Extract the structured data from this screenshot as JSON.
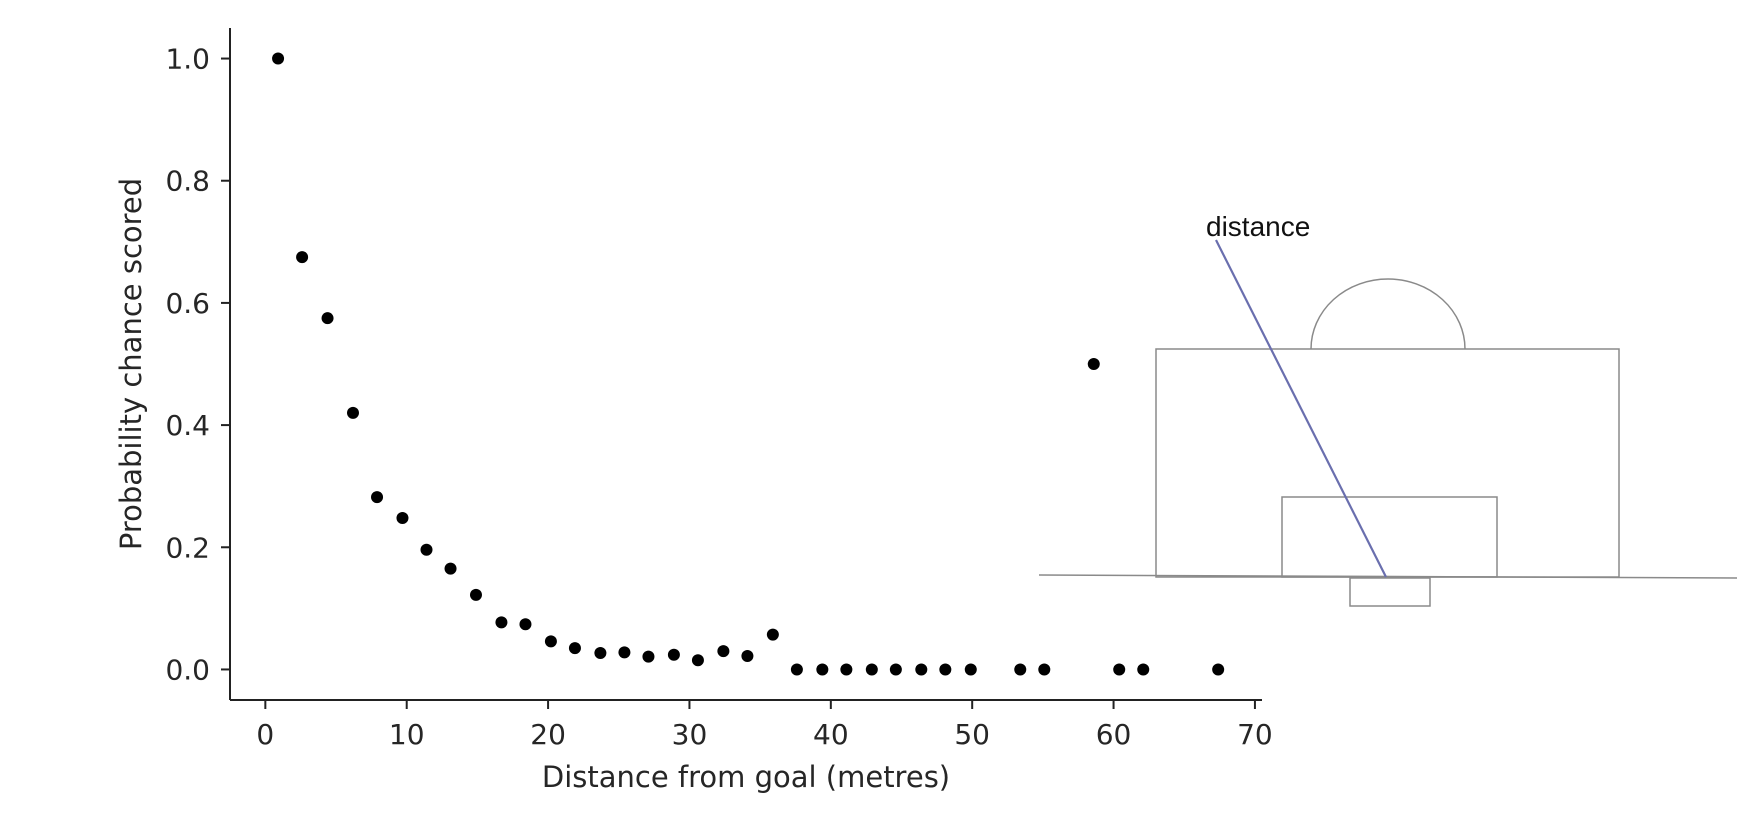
{
  "chart_data": {
    "type": "scatter",
    "xlabel": "Distance from goal (metres)",
    "ylabel": "Probability chance scored",
    "xlim": [
      -2.5,
      70.5
    ],
    "ylim": [
      -0.05,
      1.05
    ],
    "xticks": [
      "0",
      "10",
      "20",
      "30",
      "40",
      "50",
      "60",
      "70"
    ],
    "yticks": [
      "0.0",
      "0.2",
      "0.4",
      "0.6",
      "0.8",
      "1.0"
    ],
    "grid": false,
    "legend": "none",
    "marker_color": "#000000",
    "points": [
      {
        "x": 0.9,
        "y": 1.0
      },
      {
        "x": 2.6,
        "y": 0.675
      },
      {
        "x": 4.4,
        "y": 0.575
      },
      {
        "x": 6.2,
        "y": 0.42
      },
      {
        "x": 7.9,
        "y": 0.282
      },
      {
        "x": 9.7,
        "y": 0.248
      },
      {
        "x": 11.4,
        "y": 0.196
      },
      {
        "x": 13.1,
        "y": 0.165
      },
      {
        "x": 14.9,
        "y": 0.122
      },
      {
        "x": 16.7,
        "y": 0.077
      },
      {
        "x": 18.4,
        "y": 0.074
      },
      {
        "x": 20.2,
        "y": 0.046
      },
      {
        "x": 21.9,
        "y": 0.035
      },
      {
        "x": 23.7,
        "y": 0.027
      },
      {
        "x": 25.4,
        "y": 0.028
      },
      {
        "x": 27.1,
        "y": 0.021
      },
      {
        "x": 28.9,
        "y": 0.024
      },
      {
        "x": 30.6,
        "y": 0.015
      },
      {
        "x": 32.4,
        "y": 0.03
      },
      {
        "x": 34.1,
        "y": 0.022
      },
      {
        "x": 35.9,
        "y": 0.057
      },
      {
        "x": 37.6,
        "y": 0.0
      },
      {
        "x": 39.4,
        "y": 0.0
      },
      {
        "x": 41.1,
        "y": 0.0
      },
      {
        "x": 42.9,
        "y": 0.0
      },
      {
        "x": 44.6,
        "y": 0.0
      },
      {
        "x": 46.4,
        "y": 0.0
      },
      {
        "x": 48.1,
        "y": 0.0
      },
      {
        "x": 49.9,
        "y": 0.0
      },
      {
        "x": 53.4,
        "y": 0.0
      },
      {
        "x": 55.1,
        "y": 0.0
      },
      {
        "x": 58.6,
        "y": 0.5
      },
      {
        "x": 60.4,
        "y": 0.0
      },
      {
        "x": 62.1,
        "y": 0.0
      },
      {
        "x": 67.4,
        "y": 0.0
      }
    ]
  },
  "diagram": {
    "label": "distance",
    "distance_line_color": "#6a6fae",
    "pitch_line_color": "#8a8a8a"
  }
}
